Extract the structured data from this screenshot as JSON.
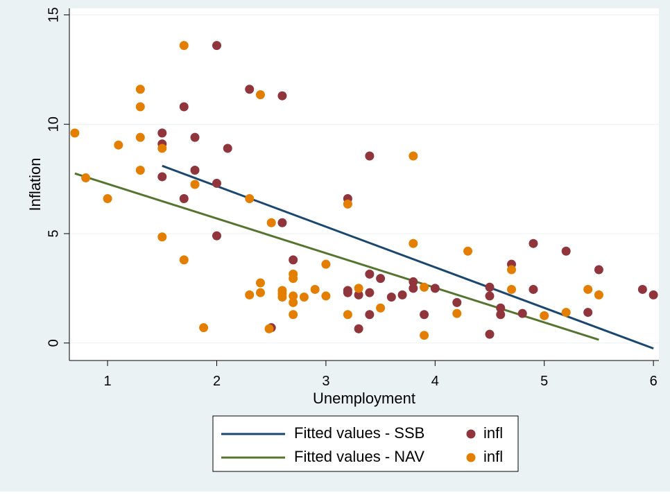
{
  "chart_data": {
    "type": "scatter",
    "title": "",
    "xlabel": "Unemployment",
    "ylabel": "Inflation",
    "xlim": [
      0.65,
      6.05
    ],
    "ylim": [
      -0.8,
      15.3
    ],
    "xticks": [
      1,
      2,
      3,
      4,
      5,
      6
    ],
    "yticks": [
      0,
      5,
      10,
      15
    ],
    "grid": true,
    "legend_position": "bottom",
    "colors": {
      "outer_background": "#EAF2F3",
      "plot_background": "#FFFFFF",
      "grid": "#EAF2F3",
      "ssb_line": "#1A476F",
      "nav_line": "#55752F",
      "ssb_points": "#90353B",
      "nav_points": "#E37E00"
    },
    "lines": [
      {
        "name": "Fitted values - SSB",
        "x": [
          1.5,
          6.0
        ],
        "y": [
          8.1,
          -0.25
        ]
      },
      {
        "name": "Fitted values - NAV",
        "x": [
          0.7,
          5.5
        ],
        "y": [
          7.75,
          0.15
        ]
      }
    ],
    "series": [
      {
        "name": "infl",
        "x": [
          1.5,
          1.5,
          1.5,
          1.7,
          1.7,
          1.8,
          1.8,
          2.0,
          2.0,
          2.0,
          2.1,
          2.3,
          2.5,
          2.6,
          2.6,
          2.7,
          3.2,
          3.2,
          3.2,
          3.3,
          3.3,
          3.4,
          3.4,
          3.4,
          3.4,
          3.5,
          3.6,
          3.7,
          3.8,
          3.8,
          3.9,
          4.0,
          4.2,
          4.5,
          4.5,
          4.5,
          4.6,
          4.6,
          4.7,
          4.8,
          4.9,
          4.9,
          5.2,
          5.4,
          5.5,
          5.9,
          6.0
        ],
        "y": [
          9.6,
          9.1,
          7.6,
          10.8,
          6.6,
          9.4,
          7.9,
          13.6,
          7.3,
          4.9,
          8.9,
          11.6,
          0.7,
          11.3,
          5.5,
          3.8,
          6.6,
          2.4,
          2.3,
          2.2,
          0.65,
          8.55,
          3.15,
          2.3,
          1.3,
          2.95,
          2.1,
          2.2,
          2.8,
          2.5,
          1.3,
          2.5,
          1.85,
          2.55,
          2.15,
          0.4,
          1.6,
          1.3,
          3.6,
          1.35,
          4.55,
          2.45,
          4.2,
          1.4,
          3.35,
          2.45,
          2.2
        ]
      },
      {
        "name": "infl",
        "x": [
          0.7,
          0.8,
          1.0,
          1.1,
          1.3,
          1.3,
          1.3,
          1.3,
          1.5,
          1.5,
          1.7,
          1.7,
          1.8,
          1.88,
          2.3,
          2.3,
          2.4,
          2.4,
          2.4,
          2.48,
          2.5,
          2.6,
          2.6,
          2.6,
          2.7,
          2.7,
          2.7,
          2.7,
          2.7,
          2.8,
          2.9,
          3.0,
          3.0,
          3.2,
          3.2,
          3.3,
          3.5,
          3.8,
          3.8,
          3.9,
          3.9,
          4.2,
          4.3,
          4.7,
          4.7,
          5.0,
          5.2,
          5.4,
          5.5
        ],
        "y": [
          9.6,
          7.55,
          6.6,
          9.05,
          11.6,
          10.8,
          9.4,
          7.9,
          8.9,
          4.85,
          13.6,
          3.8,
          7.25,
          0.7,
          6.6,
          2.2,
          11.35,
          2.75,
          2.3,
          0.65,
          5.5,
          2.4,
          2.25,
          2.1,
          3.15,
          2.95,
          2.15,
          1.85,
          1.3,
          2.1,
          2.45,
          3.6,
          2.15,
          6.35,
          1.3,
          2.5,
          1.6,
          8.55,
          4.55,
          2.55,
          0.35,
          1.35,
          4.2,
          3.35,
          2.45,
          1.25,
          1.4,
          2.45,
          2.2
        ]
      }
    ],
    "legend": [
      {
        "label": "Fitted values - SSB",
        "kind": "line",
        "color": "#1A476F"
      },
      {
        "label": "infl",
        "kind": "marker",
        "color": "#90353B"
      },
      {
        "label": "Fitted values - NAV",
        "kind": "line",
        "color": "#55752F"
      },
      {
        "label": "infl",
        "kind": "marker",
        "color": "#E37E00"
      }
    ]
  }
}
